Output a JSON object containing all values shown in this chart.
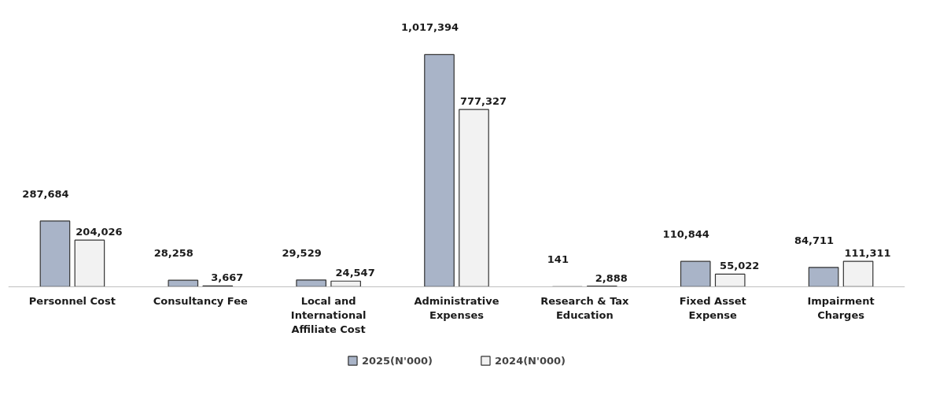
{
  "chart_data": {
    "type": "bar",
    "categories": [
      "Personnel Cost",
      "Consultancy Fee",
      "Local and International Affiliate Cost",
      "Administrative Expenses",
      "Research & Tax Education",
      "Fixed Asset Expense",
      "Impairment Charges"
    ],
    "series": [
      {
        "name": "2025(N'000)",
        "color": "#a9b4c8",
        "values": [
          287684,
          28258,
          29529,
          1017394,
          141,
          110844,
          84711
        ],
        "value_labels": [
          "287,684",
          "28,258",
          "29,529",
          "1,017,394",
          "141",
          "110,844",
          "84,711"
        ]
      },
      {
        "name": "2024(N'000)",
        "color": "#f2f2f2",
        "values": [
          204026,
          3667,
          24547,
          777327,
          2888,
          55022,
          111311
        ],
        "value_labels": [
          "204,026",
          "3,667",
          "24,547",
          "777,327",
          "2,888",
          "55,022",
          "111,311"
        ]
      }
    ],
    "legend": "bottom"
  }
}
